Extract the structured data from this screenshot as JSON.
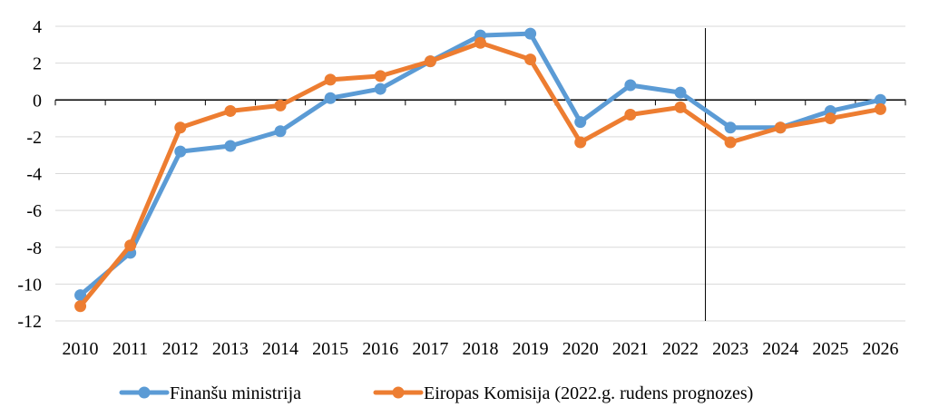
{
  "chart_data": {
    "type": "line",
    "title": "",
    "xlabel": "",
    "ylabel": "",
    "categories": [
      "2010",
      "2011",
      "2012",
      "2013",
      "2014",
      "2015",
      "2016",
      "2017",
      "2018",
      "2019",
      "2020",
      "2021",
      "2022",
      "2023",
      "2024",
      "2025",
      "2026"
    ],
    "ylim": [
      -12,
      4
    ],
    "yticks": [
      4,
      2,
      0,
      -2,
      -4,
      -6,
      -8,
      -10,
      -12
    ],
    "grid": true,
    "legend_position": "bottom",
    "forecast_divider_after": "2022",
    "series": [
      {
        "name": "Finanšu ministrija",
        "color": "#5B9BD5",
        "values": [
          -10.6,
          -8.3,
          -2.8,
          -2.5,
          -1.7,
          0.1,
          0.6,
          2.1,
          3.5,
          3.6,
          -1.2,
          0.8,
          0.4,
          -1.5,
          -1.5,
          -0.6,
          0.0
        ]
      },
      {
        "name": "Eiropas Komisija (2022.g. rudens prognozes)",
        "color": "#ED7D31",
        "values": [
          -11.2,
          -7.9,
          -1.5,
          -0.6,
          -0.3,
          1.1,
          1.3,
          2.1,
          3.1,
          2.2,
          -2.3,
          -0.8,
          -0.4,
          -2.3,
          -1.5,
          -1.0,
          -0.5
        ]
      }
    ]
  }
}
